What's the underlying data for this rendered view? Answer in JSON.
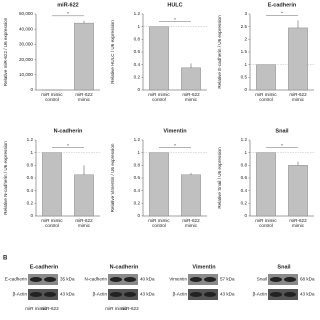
{
  "chart_data": [
    {
      "type": "bar",
      "title": "miR-622",
      "y_label": "Relative miR-622 / U6 expression",
      "categories": [
        "miR mimic control",
        "miR-622 mimic"
      ],
      "values": [
        1,
        44000
      ],
      "errors": [
        0,
        1500
      ],
      "color": "#c0c0c0",
      "ylim": [
        0,
        50000
      ],
      "yticks": [
        0,
        {
          "value": 10000,
          "label": "10,000"
        },
        {
          "value": 20000,
          "label": "20,000"
        },
        {
          "value": 30000,
          "label": "30,000"
        },
        {
          "value": 40000,
          "label": "40,000"
        },
        {
          "value": 50000,
          "label": "50,000"
        }
      ],
      "significance": "*"
    },
    {
      "type": "bar",
      "title": "HULC",
      "y_label": "Relative HULC / U6 expression",
      "categories": [
        "miR mimic control",
        "miR-622 mimic"
      ],
      "values": [
        1,
        0.35
      ],
      "errors": [
        0,
        0.07
      ],
      "color": "#c0c0c0",
      "ylim": [
        0,
        1.2
      ],
      "yticks": [
        0,
        0.2,
        0.4,
        0.6,
        0.8,
        1,
        1.2
      ],
      "reference_line": 1,
      "significance": "*"
    },
    {
      "type": "bar",
      "title": "E-cadherin",
      "y_label": "Relative E-cadherin / U6 expression",
      "categories": [
        "miR mimic control",
        "miR-622 mimic"
      ],
      "values": [
        1,
        2.45
      ],
      "errors": [
        0,
        0.3
      ],
      "color": "#c0c0c0",
      "ylim": [
        0,
        3
      ],
      "yticks": [
        0,
        0.5,
        1,
        1.5,
        2,
        2.5,
        3
      ],
      "reference_line": 1,
      "significance": "*"
    },
    {
      "type": "bar",
      "title": "N-cadherin",
      "y_label": "Relative N-cadherin / U6 expression",
      "categories": [
        "miR mimic control",
        "miR-622 mimic"
      ],
      "values": [
        1,
        0.65
      ],
      "errors": [
        0,
        0.15
      ],
      "color": "#c0c0c0",
      "ylim": [
        0,
        1.2
      ],
      "yticks": [
        0,
        0.2,
        0.4,
        0.6,
        0.8,
        1,
        1.2
      ],
      "reference_line": 1,
      "significance": "*"
    },
    {
      "type": "bar",
      "title": "Vimentin",
      "y_label": "Relative Vimentin / U6 expression",
      "categories": [
        "miR mimic control",
        "miR-622 mimic"
      ],
      "values": [
        1,
        0.65
      ],
      "errors": [
        0,
        0.03
      ],
      "color": "#c0c0c0",
      "ylim": [
        0,
        1.2
      ],
      "yticks": [
        0,
        0.2,
        0.4,
        0.6,
        0.8,
        1,
        1.2
      ],
      "reference_line": 1,
      "significance": "*"
    },
    {
      "type": "bar",
      "title": "Snail",
      "y_label": "Relative Snail / U6 expression",
      "categories": [
        "miR mimic control",
        "miR-622 mimic"
      ],
      "values": [
        1,
        0.8
      ],
      "errors": [
        0,
        0.06
      ],
      "color": "#c0c0c0",
      "ylim": [
        0,
        1.2
      ],
      "yticks": [
        0,
        0.2,
        0.4,
        0.6,
        0.8,
        1,
        1.2
      ],
      "reference_line": 1,
      "significance": "*"
    }
  ],
  "panel_label": "B",
  "blots": [
    {
      "title": "E-cadherin",
      "bands": [
        {
          "label": "E-cadherin",
          "size": "35 kDa"
        },
        {
          "label": "β-Actin",
          "size": "43 kDa"
        }
      ]
    },
    {
      "title": "N-cadherin",
      "bands": [
        {
          "label": "N-cadherin",
          "size": "40 kDa"
        },
        {
          "label": "β-Actin",
          "size": "43 kDa"
        }
      ]
    },
    {
      "title": "Vimentin",
      "bands": [
        {
          "label": "Vimentin",
          "size": "57 kDa"
        },
        {
          "label": "β-Actin",
          "size": "43 kDa"
        }
      ]
    },
    {
      "title": "Snail",
      "bands": [
        {
          "label": "Snail",
          "size": "68 kDa"
        },
        {
          "label": "β-Actin",
          "size": "43 kDa"
        }
      ]
    }
  ],
  "lanes": [
    "miR mimic",
    "miR-622"
  ]
}
